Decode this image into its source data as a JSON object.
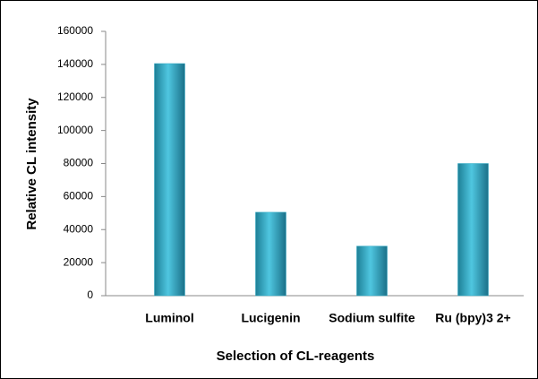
{
  "chart_data": {
    "type": "bar",
    "x_label": "Selection of CL-reagents",
    "y_label": "Relative CL intensity",
    "categories": [
      "Luminol",
      "Lucigenin",
      "Sodium sulfite",
      "Ru (bpy)3 2+"
    ],
    "values": [
      140500,
      50500,
      30000,
      80000
    ],
    "color": "#2fa9c4",
    "ylim": [
      0,
      160000
    ],
    "yticks": [
      0,
      20000,
      40000,
      60000,
      80000,
      100000,
      120000,
      140000,
      160000
    ],
    "grid": false
  }
}
